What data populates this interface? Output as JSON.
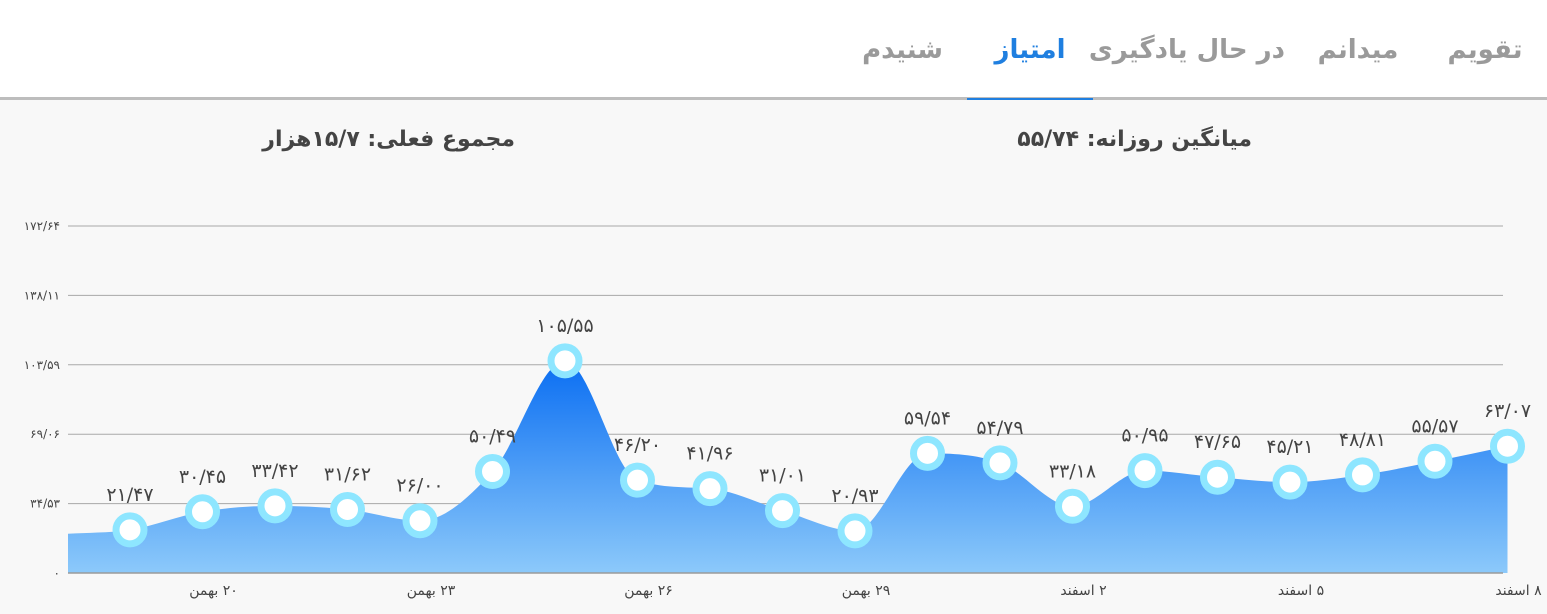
{
  "tabs": [
    {
      "label": "تقویم",
      "active": false
    },
    {
      "label": "میدانم",
      "active": false
    },
    {
      "label": "در حال یادگیری",
      "active": false
    },
    {
      "label": "امتیاز",
      "active": true
    },
    {
      "label": "شنیدم",
      "active": false
    }
  ],
  "stats": {
    "daily_average": "میانگین روزانه: ۵۵/۷۴",
    "current_total": "مجموع فعلی: ۱۵/۷هزار"
  },
  "colors": {
    "accent": "#1f7fe0",
    "area_top": "#0a6ef2",
    "area_bottom": "#8cc9fa",
    "marker_ring": "#8ee6ff",
    "marker_fill": "#ffffff"
  },
  "chart_data": {
    "type": "area",
    "title": "",
    "xlabel": "",
    "ylabel": "",
    "ylim": [
      0,
      172.64
    ],
    "y_ticks": [
      {
        "value": 0,
        "label": "۰"
      },
      {
        "value": 34.53,
        "label": "۳۴/۵۳"
      },
      {
        "value": 69.06,
        "label": "۶۹/۰۶"
      },
      {
        "value": 103.59,
        "label": "۱۰۳/۵۹"
      },
      {
        "value": 138.11,
        "label": "۱۳۸/۱۱"
      },
      {
        "value": 172.64,
        "label": "۱۷۲/۶۴"
      }
    ],
    "grid": true,
    "x_ticks": [
      {
        "index": 1,
        "label": "۲۰ بهمن"
      },
      {
        "index": 4,
        "label": "۲۳ بهمن"
      },
      {
        "index": 7,
        "label": "۲۶ بهمن"
      },
      {
        "index": 10,
        "label": "۲۹ بهمن"
      },
      {
        "index": 13,
        "label": "۲ اسفند"
      },
      {
        "index": 16,
        "label": "۵ اسفند"
      },
      {
        "index": 19,
        "label": "۸ اسفند"
      }
    ],
    "leading_value": 19.5,
    "points": [
      {
        "value": 21.47,
        "label": "۲۱/۴۷"
      },
      {
        "value": 30.45,
        "label": "۳۰/۴۵"
      },
      {
        "value": 33.42,
        "label": "۳۳/۴۲"
      },
      {
        "value": 31.62,
        "label": "۳۱/۶۲"
      },
      {
        "value": 26.0,
        "label": "۲۶/۰۰"
      },
      {
        "value": 50.49,
        "label": "۵۰/۴۹"
      },
      {
        "value": 105.55,
        "label": "۱۰۵/۵۵"
      },
      {
        "value": 46.2,
        "label": "۴۶/۲۰"
      },
      {
        "value": 41.96,
        "label": "۴۱/۹۶"
      },
      {
        "value": 31.01,
        "label": "۳۱/۰۱"
      },
      {
        "value": 20.93,
        "label": "۲۰/۹۳"
      },
      {
        "value": 59.54,
        "label": "۵۹/۵۴"
      },
      {
        "value": 54.79,
        "label": "۵۴/۷۹"
      },
      {
        "value": 33.18,
        "label": "۳۳/۱۸"
      },
      {
        "value": 50.95,
        "label": "۵۰/۹۵"
      },
      {
        "value": 47.65,
        "label": "۴۷/۶۵"
      },
      {
        "value": 45.21,
        "label": "۴۵/۲۱"
      },
      {
        "value": 48.81,
        "label": "۴۸/۸۱"
      },
      {
        "value": 55.57,
        "label": "۵۵/۵۷"
      },
      {
        "value": 63.07,
        "label": "۶۳/۰۷"
      }
    ]
  }
}
